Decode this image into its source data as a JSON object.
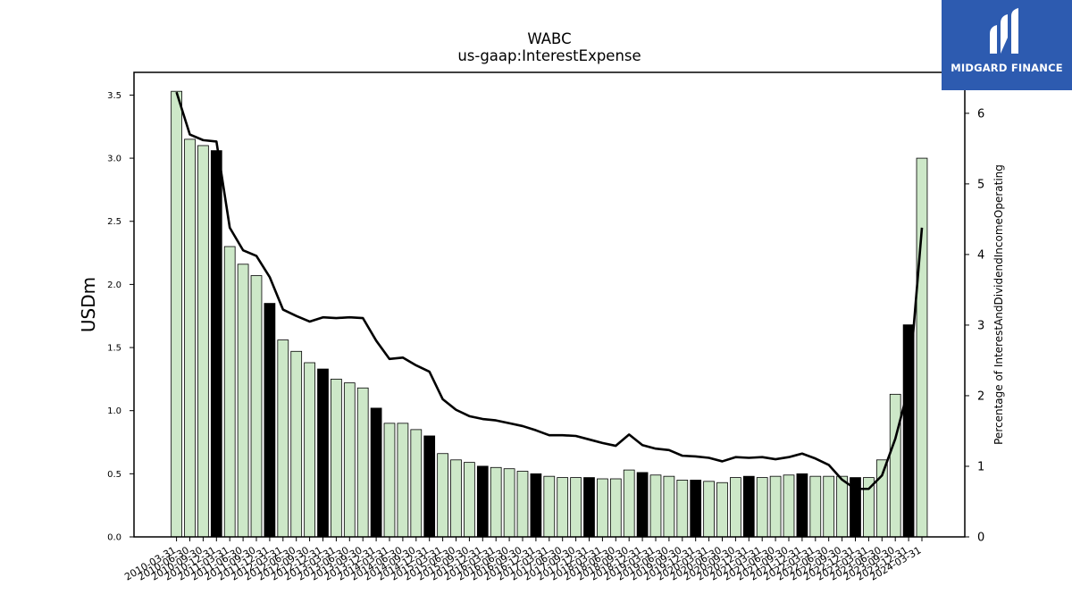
{
  "brand": {
    "name": "MIDGARD FINANCE",
    "bg_color": "#2d5bb0",
    "icon": "midgard-logo-icon"
  },
  "chart_data": {
    "type": "bar",
    "title": "WABC",
    "subtitle": "us-gaap:InterestExpense",
    "ylabel": "USDm",
    "y2label": "Percentage of InterestAndDividendIncomeOperating",
    "ylim": [
      0,
      3.68
    ],
    "y2lim": [
      0,
      6.58
    ],
    "yticks": [
      "0.0",
      "0.5",
      "1.0",
      "1.5",
      "2.0",
      "2.5",
      "3.0",
      "3.5"
    ],
    "y2ticks": [
      "0",
      "1",
      "2",
      "3",
      "4",
      "5",
      "6"
    ],
    "grid": false,
    "bar_colors": {
      "quarter": "#cde8c8",
      "year_end": "#000000"
    },
    "categories": [
      "2010-03-31",
      "2010-06-30",
      "2010-09-30",
      "2010-12-31",
      "2011-03-31",
      "2011-06-30",
      "2011-09-30",
      "2011-12-31",
      "2012-03-31",
      "2012-06-30",
      "2012-09-30",
      "2012-12-31",
      "2013-03-31",
      "2013-06-30",
      "2013-09-30",
      "2013-12-31",
      "2014-03-31",
      "2014-06-30",
      "2014-09-30",
      "2014-12-31",
      "2015-03-31",
      "2015-06-30",
      "2015-09-30",
      "2015-12-31",
      "2016-03-31",
      "2016-06-30",
      "2016-09-30",
      "2016-12-31",
      "2017-03-31",
      "2017-06-30",
      "2017-09-30",
      "2017-12-31",
      "2018-03-31",
      "2018-06-30",
      "2018-09-30",
      "2018-12-31",
      "2019-03-31",
      "2019-06-30",
      "2019-09-30",
      "2019-12-31",
      "2020-03-31",
      "2020-06-30",
      "2020-09-30",
      "2020-12-31",
      "2021-03-31",
      "2021-06-30",
      "2021-09-30",
      "2021-12-31",
      "2022-03-31",
      "2022-06-30",
      "2022-09-30",
      "2022-12-31",
      "2023-03-31",
      "2023-06-30",
      "2023-09-30",
      "2023-12-31",
      "2024-03-31"
    ],
    "series": [
      {
        "type": "bar",
        "axis": "left",
        "values": [
          3.53,
          3.15,
          3.1,
          3.06,
          2.3,
          2.16,
          2.07,
          1.85,
          1.56,
          1.47,
          1.38,
          1.33,
          1.25,
          1.22,
          1.18,
          1.02,
          0.9,
          0.9,
          0.85,
          0.8,
          0.66,
          0.61,
          0.59,
          0.56,
          0.55,
          0.54,
          0.52,
          0.5,
          0.48,
          0.47,
          0.47,
          0.47,
          0.46,
          0.46,
          0.53,
          0.51,
          0.49,
          0.48,
          0.45,
          0.45,
          0.44,
          0.43,
          0.47,
          0.48,
          0.47,
          0.48,
          0.49,
          0.5,
          0.48,
          0.48,
          0.48,
          0.47,
          0.47,
          0.61,
          1.13,
          1.68,
          3.0
        ]
      },
      {
        "type": "line",
        "axis": "right",
        "values": [
          6.3,
          5.7,
          5.62,
          5.6,
          4.38,
          4.06,
          3.98,
          3.68,
          3.22,
          3.13,
          3.05,
          3.11,
          3.1,
          3.11,
          3.1,
          2.78,
          2.52,
          2.54,
          2.43,
          2.34,
          1.95,
          1.8,
          1.71,
          1.67,
          1.65,
          1.61,
          1.57,
          1.51,
          1.44,
          1.44,
          1.43,
          1.38,
          1.33,
          1.29,
          1.45,
          1.3,
          1.25,
          1.23,
          1.15,
          1.14,
          1.12,
          1.07,
          1.13,
          1.12,
          1.13,
          1.1,
          1.13,
          1.18,
          1.11,
          1.02,
          0.81,
          0.68,
          0.68,
          0.87,
          1.39,
          2.11,
          4.38
        ]
      }
    ]
  }
}
